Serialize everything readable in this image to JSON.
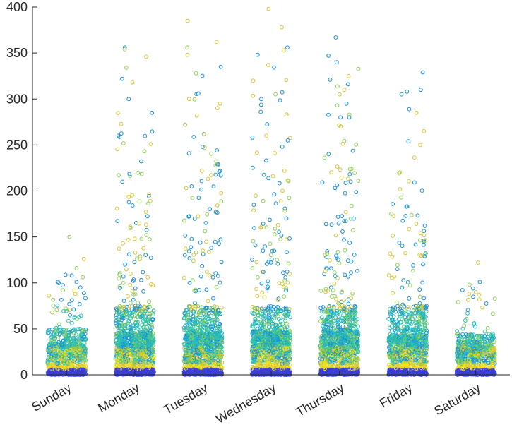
{
  "chart_data": {
    "type": "scatter",
    "xlabel": "",
    "ylabel": "",
    "ylim": [
      0,
      400
    ],
    "yticks": [
      0,
      50,
      100,
      150,
      200,
      250,
      300,
      350,
      400
    ],
    "categories": [
      "Sunday",
      "Monday",
      "Tuesday",
      "Wednesday",
      "Thursday",
      "Friday",
      "Saturday"
    ],
    "grid": false,
    "legend": "none",
    "x_tick_label_rotation_deg": -30,
    "colors": {
      "palette": [
        "#3b3fd6",
        "#1a8fd8",
        "#21b6c9",
        "#35c49a",
        "#8fcf57",
        "#d8c63a",
        "#f5e11d"
      ],
      "axis": "#262626"
    },
    "series": [
      {
        "category": "Sunday",
        "points": 900,
        "median": 12,
        "max": 150,
        "notable_values": [
          150,
          126,
          108,
          101,
          95,
          92,
          88
        ]
      },
      {
        "category": "Monday",
        "points": 1300,
        "median": 18,
        "max": 356,
        "notable_values": [
          356,
          354,
          346,
          334,
          322,
          318,
          300,
          285,
          260
        ]
      },
      {
        "category": "Tuesday",
        "points": 1300,
        "median": 18,
        "max": 385,
        "notable_values": [
          385,
          362,
          356,
          348,
          335,
          328,
          306,
          300,
          282
        ]
      },
      {
        "category": "Wednesday",
        "points": 1300,
        "median": 19,
        "max": 398,
        "notable_values": [
          398,
          378,
          356,
          353,
          348,
          337,
          320,
          305,
          300
        ]
      },
      {
        "category": "Thursday",
        "points": 1300,
        "median": 19,
        "max": 367,
        "notable_values": [
          367,
          347,
          340,
          325,
          321,
          316,
          305,
          295,
          283
        ]
      },
      {
        "category": "Friday",
        "points": 1200,
        "median": 17,
        "max": 329,
        "notable_values": [
          329,
          310,
          308,
          305,
          289,
          285,
          265,
          250
        ]
      },
      {
        "category": "Saturday",
        "points": 850,
        "median": 11,
        "max": 122,
        "notable_values": [
          122,
          101,
          94,
          90,
          88,
          85,
          82
        ]
      }
    ]
  }
}
